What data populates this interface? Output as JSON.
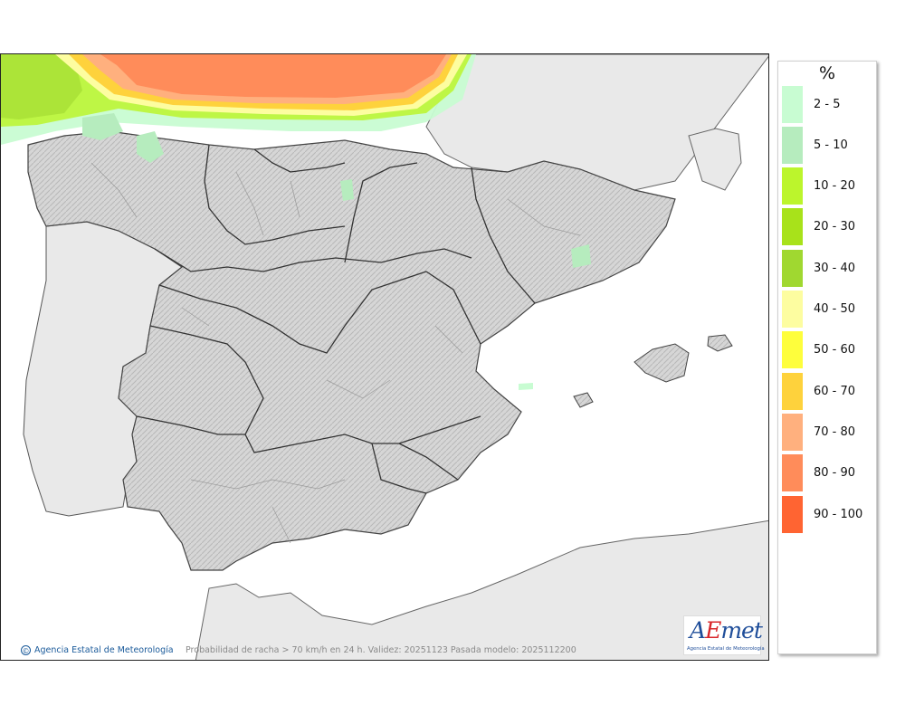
{
  "map": {
    "caption": "Probabilidad de racha > 70 km/h en 24 h. Validez: 20251123 Pasada modelo: 2025112200",
    "copyright": "Agencia Estatal de Meteorología",
    "copyright_symbol": "©",
    "colors": {
      "sea": "#ffffff",
      "land_other": "#e8e8e8",
      "land_iberia": "#d9d9d9",
      "coast": "#555555",
      "border": "#333333"
    }
  },
  "logo": {
    "word_a": "A",
    "word_e": "E",
    "word_rest": "met",
    "subtitle": "Agencia Estatal de Meteorología"
  },
  "legend": {
    "unit": "%",
    "classes": [
      {
        "label": "2 - 5",
        "color": "#c8fcd2"
      },
      {
        "label": "5 - 10",
        "color": "#b6ecbe"
      },
      {
        "label": "10 - 20",
        "color": "#bcf52c"
      },
      {
        "label": "20 - 30",
        "color": "#a8e21a"
      },
      {
        "label": "30 - 40",
        "color": "#a0d830"
      },
      {
        "label": "40 - 50",
        "color": "#fdfda0"
      },
      {
        "label": "50 - 60",
        "color": "#fefe3c"
      },
      {
        "label": "60 - 70",
        "color": "#fed23c"
      },
      {
        "label": "70 - 80",
        "color": "#ffb07e"
      },
      {
        "label": "80 - 90",
        "color": "#ff8c5a"
      },
      {
        "label": "90 - 100",
        "color": "#ff6432"
      }
    ]
  }
}
